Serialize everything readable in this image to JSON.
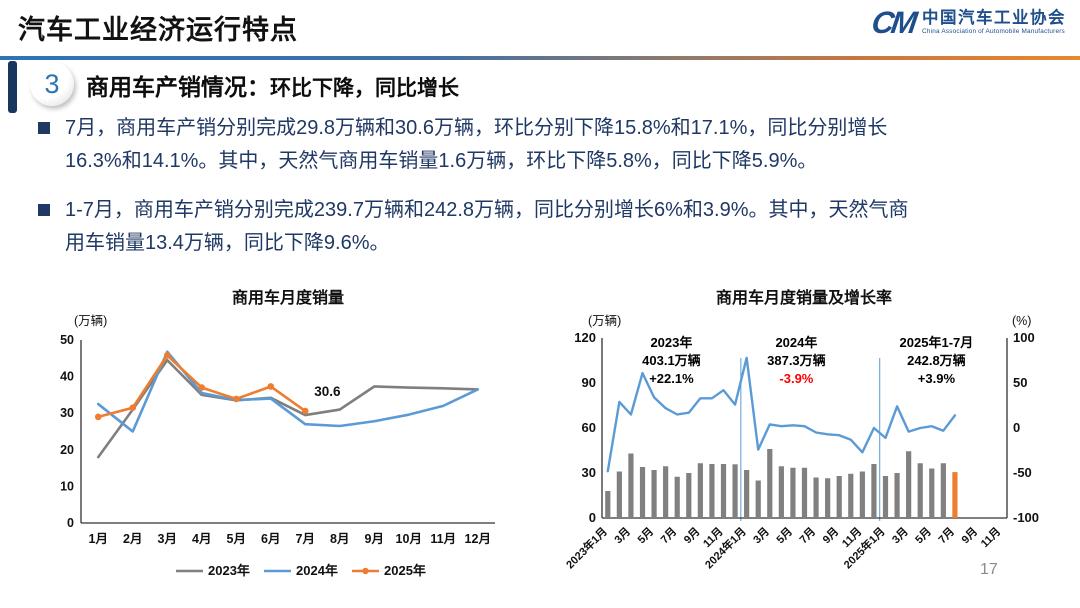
{
  "header": {
    "title": "汽车工业经济运行特点",
    "logo": {
      "monogram": "CM",
      "name_cn": "中国汽车工业协会",
      "name_en": "China Association of Automobile Manufacturers"
    }
  },
  "section": {
    "badge": "3",
    "heading_main": "商用车产销情况：",
    "heading_sub": "环比下降，同比增长"
  },
  "bullets": [
    "7月，商用车产销分别完成29.8万辆和30.6万辆，环比分别下降15.8%和17.1%，同比分别增长\n16.3%和14.1%。其中，天然气商用车销量1.6万辆，环比下降5.8%，同比下降5.9%。",
    "1-7月，商用车产销分别完成239.7万辆和242.8万辆，同比分别增长6%和3.9%。其中，天然气商\n用车销量13.4万辆，同比下降9.6%。"
  ],
  "page": {
    "number": "17"
  },
  "colors": {
    "navy_text": "#1f3864",
    "series_gray": "#7f7f7f",
    "series_blue": "#5b9bd5",
    "series_orange": "#ed7d31",
    "bar_gray": "#808080",
    "annotation_red": "#ff0000",
    "axis": "#333333"
  },
  "chart_data": [
    {
      "type": "line",
      "title": "商用车月度销量",
      "unit": "(万辆)",
      "categories": [
        "1月",
        "2月",
        "3月",
        "4月",
        "5月",
        "6月",
        "7月",
        "8月",
        "9月",
        "10月",
        "11月",
        "12月"
      ],
      "ylim": [
        0,
        50
      ],
      "yticks": [
        0,
        10,
        20,
        30,
        40,
        50
      ],
      "legend_position": "bottom",
      "grid": false,
      "series": [
        {
          "name": "2023年",
          "color": "#7f7f7f",
          "marker": false,
          "values": [
            18,
            31,
            44.5,
            35,
            33.5,
            34.2,
            29.5,
            31,
            37.3,
            37,
            36.8,
            36.5
          ]
        },
        {
          "name": "2024年",
          "color": "#5b9bd5",
          "marker": false,
          "values": [
            32.5,
            25,
            46.8,
            35.5,
            33.6,
            34,
            27,
            26.5,
            27.8,
            29.6,
            32,
            36.5
          ]
        },
        {
          "name": "2025年",
          "color": "#ed7d31",
          "marker": true,
          "values": [
            29,
            31.5,
            45.8,
            37,
            33.9,
            37.3,
            30.6
          ]
        }
      ],
      "point_label": {
        "text": "30.6",
        "series": 2,
        "index": 6
      }
    },
    {
      "type": "bar",
      "subtype": "bar-line-combo",
      "title": "商用车月度销量及增长率",
      "left_unit": "(万辆)",
      "right_unit": "(%)",
      "left_ylim": [
        0,
        120
      ],
      "left_yticks": [
        0,
        30,
        60,
        90,
        120
      ],
      "right_ylim": [
        -100,
        100
      ],
      "right_yticks": [
        -100,
        -50,
        0,
        50,
        100
      ],
      "slots": 35,
      "grid": false,
      "xtick_labels": [
        "2023年1月",
        "3月",
        "5月",
        "7月",
        "9月",
        "11月",
        "2024年1月",
        "3月",
        "5月",
        "7月",
        "9月",
        "11月",
        "2025年1月",
        "3月",
        "5月",
        "7月",
        "9月",
        "11月"
      ],
      "xtick_positions": [
        0,
        2,
        4,
        6,
        8,
        10,
        12,
        14,
        16,
        18,
        20,
        22,
        24,
        26,
        28,
        30,
        32,
        34
      ],
      "bars": {
        "name": "月度销量(万辆)",
        "color": "#808080",
        "highlight_color": "#ed7d31",
        "highlight_index": 30,
        "values": [
          18,
          31,
          43,
          34,
          32,
          34.5,
          27.5,
          30,
          36.5,
          36,
          36,
          35.8,
          32,
          25,
          46,
          34.5,
          33.5,
          33.5,
          27,
          26.5,
          28,
          29.5,
          31,
          36,
          28,
          30,
          44.5,
          36.5,
          33,
          36.5,
          30.6
        ]
      },
      "line": {
        "name": "增长率(%)",
        "color": "#5b9bd5",
        "values_pct": [
          -48,
          29,
          15,
          61,
          34,
          22,
          15,
          17,
          33,
          33,
          42,
          26,
          78,
          -24,
          4,
          2,
          3,
          2,
          -5,
          -7,
          -8,
          -13,
          -27,
          0,
          -11,
          24,
          -4,
          0,
          2,
          -3,
          14
        ]
      },
      "dividers_at_slots": [
        12,
        24
      ],
      "annotations": [
        {
          "x_slot": 6,
          "lines": [
            "2023年",
            "403.1万辆",
            "+22.1%"
          ],
          "line_colors": [
            "#000000",
            "#000000",
            "#000000"
          ]
        },
        {
          "x_slot": 16.8,
          "lines": [
            "2024年",
            "387.3万辆",
            "-3.9%"
          ],
          "line_colors": [
            "#000000",
            "#000000",
            "#ff0000"
          ]
        },
        {
          "x_slot": 28.9,
          "lines": [
            "2025年1-7月",
            "242.8万辆",
            "+3.9%"
          ],
          "line_colors": [
            "#000000",
            "#000000",
            "#000000"
          ]
        }
      ]
    }
  ]
}
